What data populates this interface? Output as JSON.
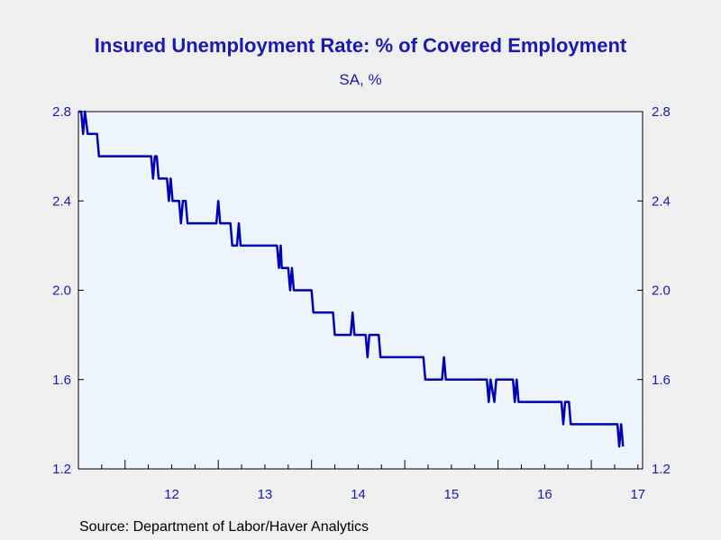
{
  "chart_data": {
    "type": "line",
    "title": "Insured Unemployment Rate: % of Covered Employment",
    "subtitle": "SA, %",
    "source": "Source:  Department of Labor/Haver Analytics",
    "xlabel": "",
    "ylabel": "",
    "x_ticks": [
      "12",
      "13",
      "14",
      "15",
      "16",
      "17"
    ],
    "y_ticks": [
      "1.2",
      "1.6",
      "2.0",
      "2.4",
      "2.8"
    ],
    "ylim": [
      1.2,
      2.8
    ],
    "xlim": [
      2011.5,
      2017.55
    ],
    "grid": false,
    "legend": "none",
    "series": [
      {
        "x": [
          2011.5,
          2011.53,
          2011.55,
          2011.57,
          2011.6,
          2011.62,
          2011.7,
          2011.72,
          2011.92,
          2011.94,
          2012.28,
          2012.3,
          2012.32,
          2012.34,
          2012.36,
          2012.38,
          2012.45,
          2012.47,
          2012.49,
          2012.51,
          2012.58,
          2012.6,
          2012.62,
          2012.64,
          2012.65,
          2012.67,
          2012.7,
          2012.72,
          2012.98,
          2013.0,
          2013.02,
          2013.13,
          2013.15,
          2013.2,
          2013.22,
          2013.24,
          2013.26,
          2013.63,
          2013.65,
          2013.67,
          2013.68,
          2013.7,
          2013.75,
          2013.77,
          2013.79,
          2013.81,
          2013.83,
          2013.85,
          2014.0,
          2014.02,
          2014.23,
          2014.25,
          2014.42,
          2014.44,
          2014.46,
          2014.48,
          2014.58,
          2014.6,
          2014.62,
          2014.64,
          2014.72,
          2014.74,
          2015.2,
          2015.22,
          2015.4,
          2015.42,
          2015.44,
          2015.46,
          2015.88,
          2015.9,
          2015.92,
          2015.96,
          2015.98,
          2016.0,
          2016.16,
          2016.18,
          2016.2,
          2016.22,
          2016.68,
          2016.7,
          2016.72,
          2016.76,
          2016.78,
          2017.28,
          2017.3,
          2017.32,
          2017.34
        ],
        "values": [
          2.8,
          2.8,
          2.7,
          2.8,
          2.7,
          2.7,
          2.7,
          2.6,
          2.6,
          2.6,
          2.6,
          2.5,
          2.6,
          2.6,
          2.5,
          2.5,
          2.5,
          2.4,
          2.5,
          2.4,
          2.4,
          2.3,
          2.4,
          2.4,
          2.4,
          2.3,
          2.3,
          2.3,
          2.3,
          2.4,
          2.3,
          2.3,
          2.2,
          2.2,
          2.3,
          2.2,
          2.2,
          2.2,
          2.1,
          2.2,
          2.1,
          2.1,
          2.1,
          2.0,
          2.1,
          2.0,
          2.0,
          2.0,
          2.0,
          1.9,
          1.9,
          1.8,
          1.8,
          1.9,
          1.8,
          1.8,
          1.8,
          1.7,
          1.8,
          1.8,
          1.8,
          1.7,
          1.7,
          1.6,
          1.6,
          1.7,
          1.6,
          1.6,
          1.6,
          1.5,
          1.6,
          1.5,
          1.6,
          1.6,
          1.6,
          1.5,
          1.6,
          1.5,
          1.5,
          1.4,
          1.5,
          1.5,
          1.4,
          1.4,
          1.3,
          1.4,
          1.3
        ]
      }
    ]
  },
  "colors": {
    "line": "#0000b4",
    "text": "#1a1ab0",
    "plot_bg": "#eef4fc",
    "page_bg": "#efefef"
  }
}
